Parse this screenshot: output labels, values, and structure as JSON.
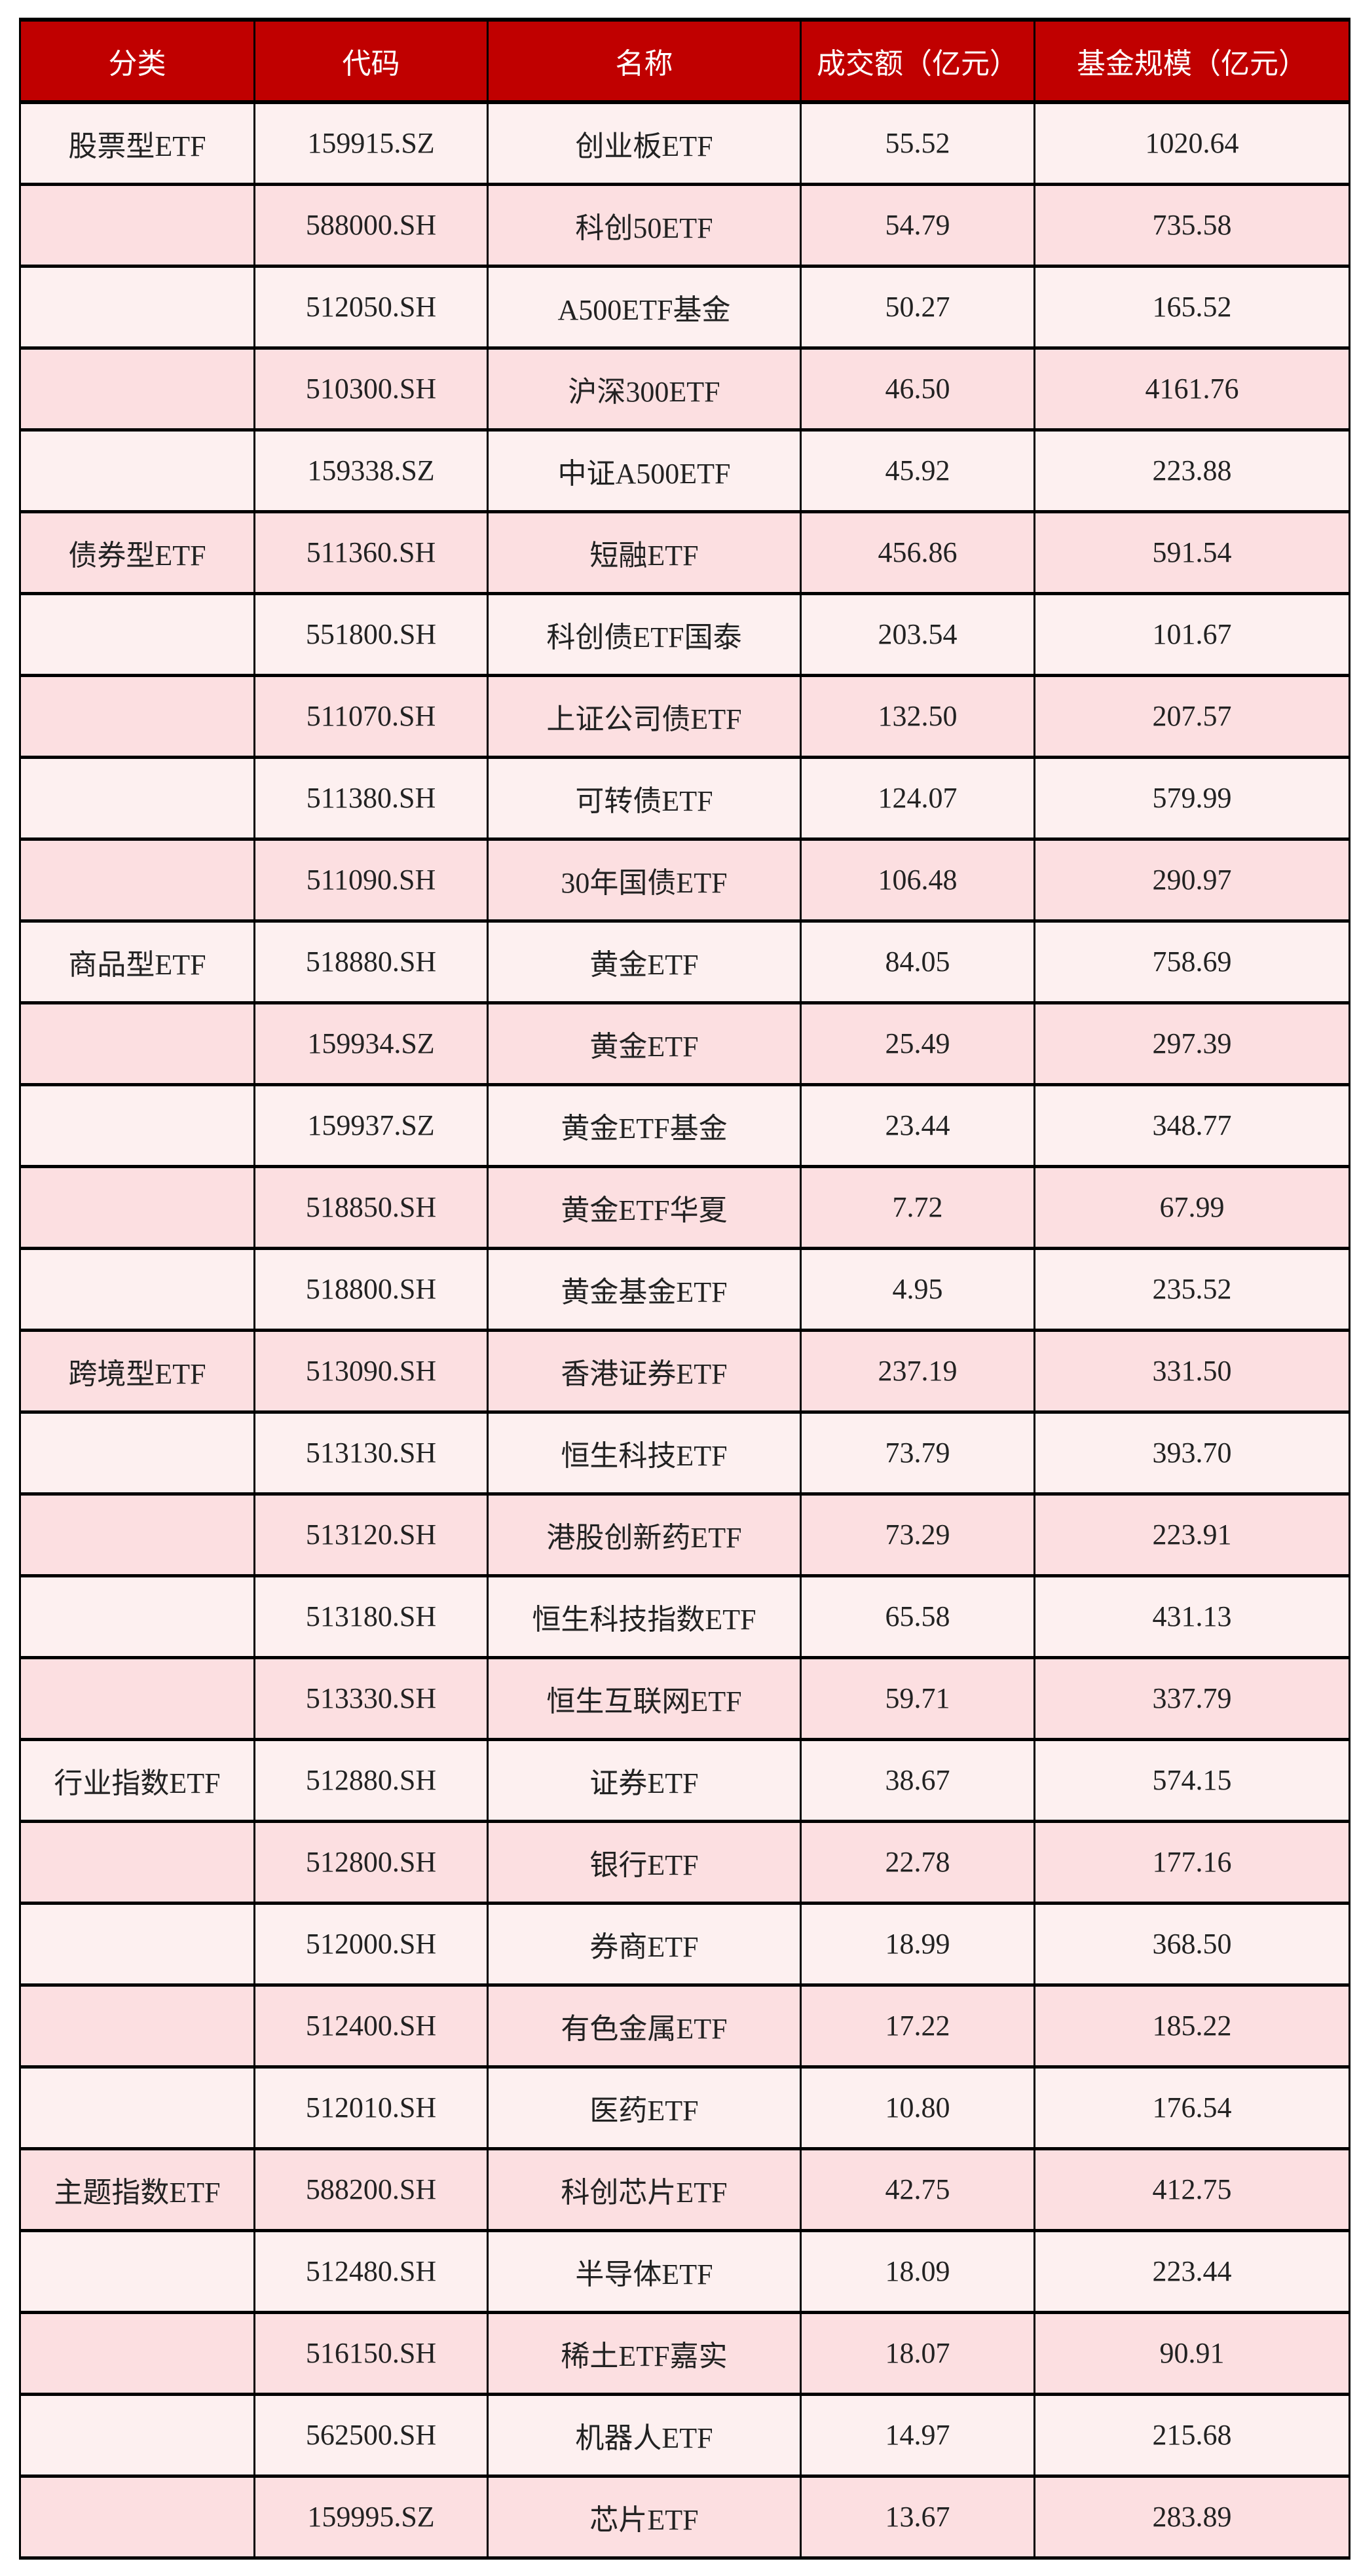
{
  "colors": {
    "header_bg": "#C00000",
    "row_odd": "#FDF0F0",
    "row_even": "#FCDFE1"
  },
  "headers": [
    "分类",
    "代码",
    "名称",
    "成交额（亿元）",
    "基金规模（亿元）"
  ],
  "rows": [
    [
      "股票型ETF",
      "159915.SZ",
      "创业板ETF",
      "55.52",
      "1020.64"
    ],
    [
      "",
      "588000.SH",
      "科创50ETF",
      "54.79",
      "735.58"
    ],
    [
      "",
      "512050.SH",
      "A500ETF基金",
      "50.27",
      "165.52"
    ],
    [
      "",
      "510300.SH",
      "沪深300ETF",
      "46.50",
      "4161.76"
    ],
    [
      "",
      "159338.SZ",
      "中证A500ETF",
      "45.92",
      "223.88"
    ],
    [
      "债券型ETF",
      "511360.SH",
      "短融ETF",
      "456.86",
      "591.54"
    ],
    [
      "",
      "551800.SH",
      "科创债ETF国泰",
      "203.54",
      "101.67"
    ],
    [
      "",
      "511070.SH",
      "上证公司债ETF",
      "132.50",
      "207.57"
    ],
    [
      "",
      "511380.SH",
      "可转债ETF",
      "124.07",
      "579.99"
    ],
    [
      "",
      "511090.SH",
      "30年国债ETF",
      "106.48",
      "290.97"
    ],
    [
      "商品型ETF",
      "518880.SH",
      "黄金ETF",
      "84.05",
      "758.69"
    ],
    [
      "",
      "159934.SZ",
      "黄金ETF",
      "25.49",
      "297.39"
    ],
    [
      "",
      "159937.SZ",
      "黄金ETF基金",
      "23.44",
      "348.77"
    ],
    [
      "",
      "518850.SH",
      "黄金ETF华夏",
      "7.72",
      "67.99"
    ],
    [
      "",
      "518800.SH",
      "黄金基金ETF",
      "4.95",
      "235.52"
    ],
    [
      "跨境型ETF",
      "513090.SH",
      "香港证券ETF",
      "237.19",
      "331.50"
    ],
    [
      "",
      "513130.SH",
      "恒生科技ETF",
      "73.79",
      "393.70"
    ],
    [
      "",
      "513120.SH",
      "港股创新药ETF",
      "73.29",
      "223.91"
    ],
    [
      "",
      "513180.SH",
      "恒生科技指数ETF",
      "65.58",
      "431.13"
    ],
    [
      "",
      "513330.SH",
      "恒生互联网ETF",
      "59.71",
      "337.79"
    ],
    [
      "行业指数ETF",
      "512880.SH",
      "证券ETF",
      "38.67",
      "574.15"
    ],
    [
      "",
      "512800.SH",
      "银行ETF",
      "22.78",
      "177.16"
    ],
    [
      "",
      "512000.SH",
      "券商ETF",
      "18.99",
      "368.50"
    ],
    [
      "",
      "512400.SH",
      "有色金属ETF",
      "17.22",
      "185.22"
    ],
    [
      "",
      "512010.SH",
      "医药ETF",
      "10.80",
      "176.54"
    ],
    [
      "主题指数ETF",
      "588200.SH",
      "科创芯片ETF",
      "42.75",
      "412.75"
    ],
    [
      "",
      "512480.SH",
      "半导体ETF",
      "18.09",
      "223.44"
    ],
    [
      "",
      "516150.SH",
      "稀土ETF嘉实",
      "18.07",
      "90.91"
    ],
    [
      "",
      "562500.SH",
      "机器人ETF",
      "14.97",
      "215.68"
    ],
    [
      "",
      "159995.SZ",
      "芯片ETF",
      "13.67",
      "283.89"
    ]
  ]
}
